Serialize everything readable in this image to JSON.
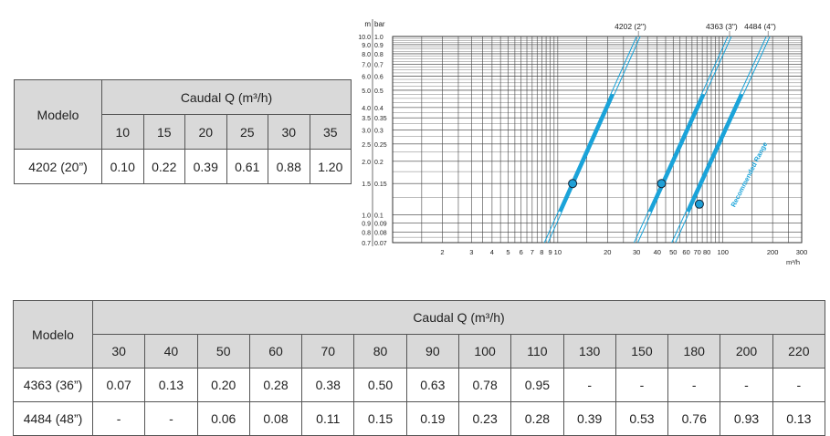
{
  "table_small": {
    "model_header": "Modelo",
    "flow_header": "Caudal Q (m³/h)",
    "columns": [
      "10",
      "15",
      "20",
      "25",
      "30",
      "35"
    ],
    "rows": [
      {
        "model": "4202 (20”)",
        "values": [
          "0.10",
          "0.22",
          "0.39",
          "0.61",
          "0.88",
          "1.20"
        ]
      }
    ]
  },
  "table_large": {
    "model_header": "Modelo",
    "flow_header": "Caudal Q (m³/h)",
    "columns": [
      "30",
      "40",
      "50",
      "60",
      "70",
      "80",
      "90",
      "100",
      "110",
      "130",
      "150",
      "180",
      "200",
      "220"
    ],
    "rows": [
      {
        "model": "4363 (36”)",
        "values": [
          "0.07",
          "0.13",
          "0.20",
          "0.28",
          "0.38",
          "0.50",
          "0.63",
          "0.78",
          "0.95",
          "-",
          "-",
          "-",
          "-",
          "-"
        ]
      },
      {
        "model": "4484 (48”)",
        "values": [
          "-",
          "-",
          "0.06",
          "0.08",
          "0.11",
          "0.15",
          "0.19",
          "0.23",
          "0.28",
          "0.39",
          "0.53",
          "0.76",
          "0.93",
          "0.13"
        ]
      }
    ]
  },
  "chart_data": {
    "type": "line",
    "x_scale": "log",
    "y_scale": "log",
    "xlabel": "m³/h",
    "ylabel_left": "m",
    "ylabel_right": "bar",
    "xlim": [
      1,
      300
    ],
    "ylim_bar": [
      0.07,
      1.0
    ],
    "x_ticks": [
      {
        "v": 2,
        "label": "2"
      },
      {
        "v": 3,
        "label": "3"
      },
      {
        "v": 4,
        "label": "4"
      },
      {
        "v": 5,
        "label": "5"
      },
      {
        "v": 6,
        "label": "6"
      },
      {
        "v": 7,
        "label": "7"
      },
      {
        "v": 8,
        "label": "8"
      },
      {
        "v": 9,
        "label": "9"
      },
      {
        "v": 10,
        "label": "10"
      },
      {
        "v": 20,
        "label": "20"
      },
      {
        "v": 30,
        "label": "30"
      },
      {
        "v": 40,
        "label": "40"
      },
      {
        "v": 50,
        "label": "50"
      },
      {
        "v": 60,
        "label": "60"
      },
      {
        "v": 70,
        "label": "70"
      },
      {
        "v": 80,
        "label": "80"
      },
      {
        "v": 100,
        "label": "100"
      },
      {
        "v": 200,
        "label": "200"
      },
      {
        "v": 300,
        "label": "300"
      }
    ],
    "y_ticks": [
      {
        "bar": 1.0,
        "m": "10.0",
        "b": "1.0"
      },
      {
        "bar": 0.9,
        "m": "9.0",
        "b": "0.9"
      },
      {
        "bar": 0.8,
        "m": "8.0",
        "b": "0.8"
      },
      {
        "bar": 0.7,
        "m": "7.0",
        "b": "0.7"
      },
      {
        "bar": 0.6,
        "m": "6.0",
        "b": "0.6"
      },
      {
        "bar": 0.5,
        "m": "5.0",
        "b": "0.5"
      },
      {
        "bar": 0.4,
        "m": "4.0",
        "b": "0.4"
      },
      {
        "bar": 0.35,
        "m": "3.5",
        "b": "0.35"
      },
      {
        "bar": 0.3,
        "m": "3.0",
        "b": "0.3"
      },
      {
        "bar": 0.25,
        "m": "2.5",
        "b": "0.25"
      },
      {
        "bar": 0.2,
        "m": "2.0",
        "b": "0.2"
      },
      {
        "bar": 0.15,
        "m": "1.5",
        "b": "0.15"
      },
      {
        "bar": 0.1,
        "m": "1.0",
        "b": "0.1"
      },
      {
        "bar": 0.09,
        "m": "0.9",
        "b": "0.09"
      },
      {
        "bar": 0.08,
        "m": "0.8",
        "b": "0.08"
      },
      {
        "bar": 0.07,
        "m": "0.7",
        "b": "0.07"
      }
    ],
    "series": [
      {
        "name": "4202 (2\")",
        "x": [
          8.3,
          30
        ],
        "y": [
          0.07,
          1.0
        ],
        "point": {
          "x": 12.3,
          "y": 0.15
        }
      },
      {
        "name": "4363 (3\")",
        "x": [
          29,
          107
        ],
        "y": [
          0.07,
          1.0
        ],
        "point": {
          "x": 42.5,
          "y": 0.15
        }
      },
      {
        "name": "4484 (4\")",
        "x": [
          49,
          183
        ],
        "y": [
          0.07,
          1.0
        ],
        "point": {
          "x": 72,
          "y": 0.115
        }
      }
    ],
    "annotation": "Recommended Range",
    "colors": {
      "line": "#1aa3d9",
      "point": "#1f9fd6",
      "grid": "#444444",
      "axis_text": "#222222"
    }
  }
}
